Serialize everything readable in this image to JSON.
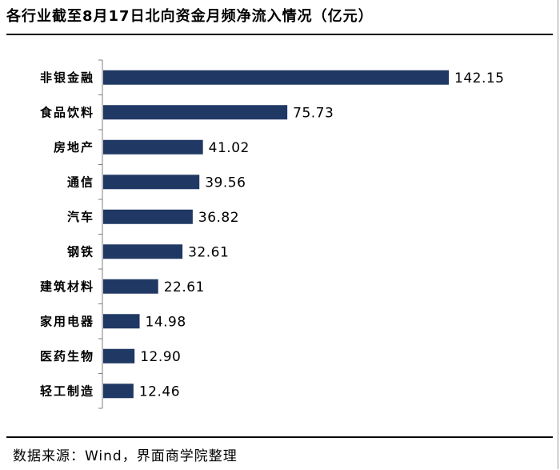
{
  "title": "各行业截至8月17日北向资金月频净流入情况（亿元）",
  "source": "数据来源：Wind，界面商学院整理",
  "colors": {
    "bar": "#203864",
    "axis": "#7f7f7f"
  },
  "chart_data": {
    "type": "bar",
    "orientation": "horizontal",
    "title": "各行业截至8月17日北向资金月频净流入情况（亿元）",
    "categories": [
      "非银金融",
      "食品饮料",
      "房地产",
      "通信",
      "汽车",
      "钢铁",
      "建筑材料",
      "家用电器",
      "医药生物",
      "轻工制造"
    ],
    "values": [
      142.15,
      75.73,
      41.02,
      39.56,
      36.82,
      32.61,
      22.61,
      14.98,
      12.9,
      12.46
    ],
    "value_labels": [
      "142.15",
      "75.73",
      "41.02",
      "39.56",
      "36.82",
      "32.61",
      "22.61",
      "14.98",
      "12.90",
      "12.46"
    ],
    "xlim": [
      0,
      160
    ],
    "grid": false,
    "legend": "none"
  }
}
